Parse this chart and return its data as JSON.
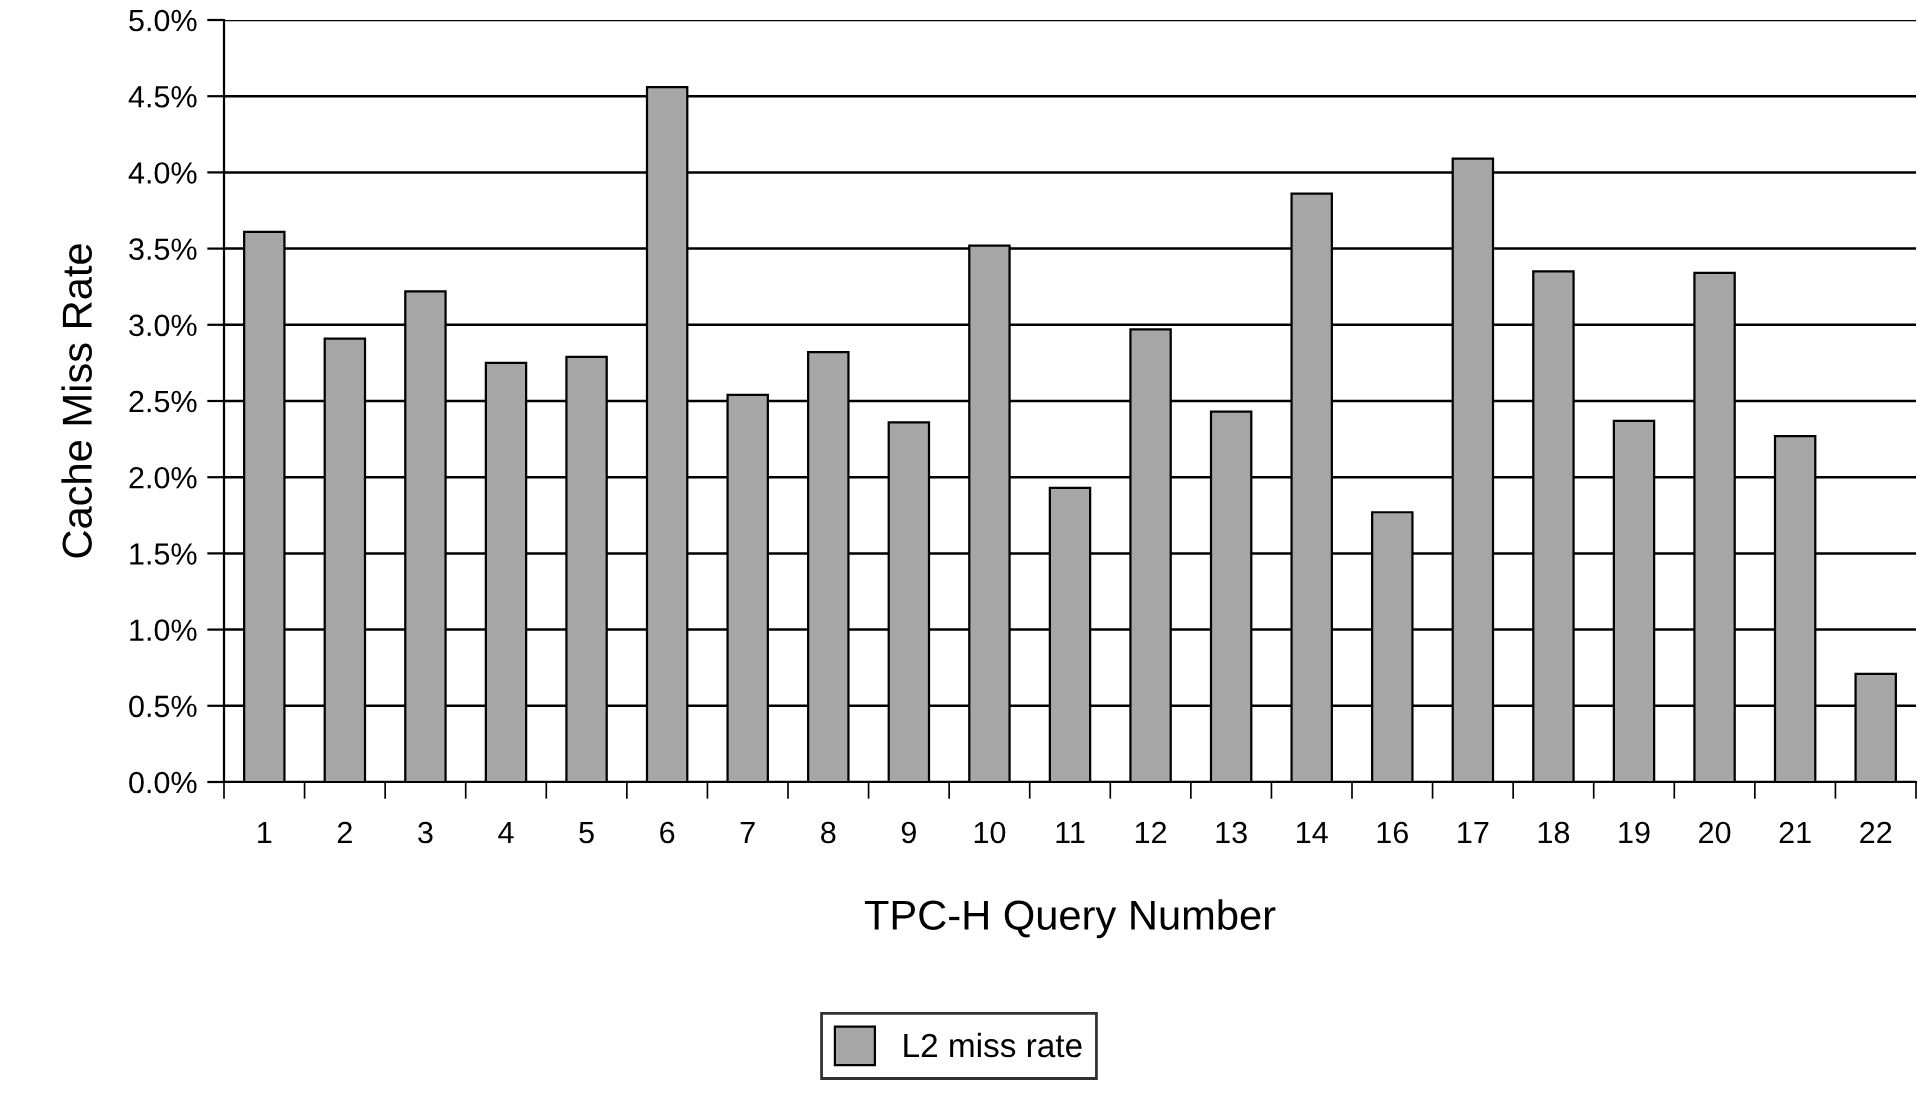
{
  "chart_data": {
    "type": "bar",
    "xlabel": "TPC-H Query Number",
    "ylabel": "Cache Miss Rate",
    "categories": [
      "1",
      "2",
      "3",
      "4",
      "5",
      "6",
      "7",
      "8",
      "9",
      "10",
      "11",
      "12",
      "13",
      "14",
      "16",
      "17",
      "18",
      "19",
      "20",
      "21",
      "22"
    ],
    "series": [
      {
        "name": "L2 miss rate",
        "color": "#a6a6a6",
        "values": [
          3.61,
          2.91,
          3.22,
          2.75,
          2.79,
          4.56,
          2.54,
          2.82,
          2.36,
          3.52,
          1.93,
          2.97,
          2.43,
          3.86,
          1.77,
          4.09,
          3.35,
          2.37,
          3.34,
          2.27,
          0.71
        ]
      }
    ],
    "ylim": [
      0,
      5
    ],
    "yticks": [
      {
        "value": 0,
        "label": "0.0%"
      },
      {
        "value": 0.5,
        "label": "0.5%"
      },
      {
        "value": 1,
        "label": "1.0%"
      },
      {
        "value": 1.5,
        "label": "1.5%"
      },
      {
        "value": 2,
        "label": "2.0%"
      },
      {
        "value": 2.5,
        "label": "2.5%"
      },
      {
        "value": 3,
        "label": "3.0%"
      },
      {
        "value": 3.5,
        "label": "3.5%"
      },
      {
        "value": 4,
        "label": "4.0%"
      },
      {
        "value": 4.5,
        "label": "4.5%"
      },
      {
        "value": 5,
        "label": "5.0%"
      }
    ],
    "grid": "y",
    "legend": "bottom"
  }
}
